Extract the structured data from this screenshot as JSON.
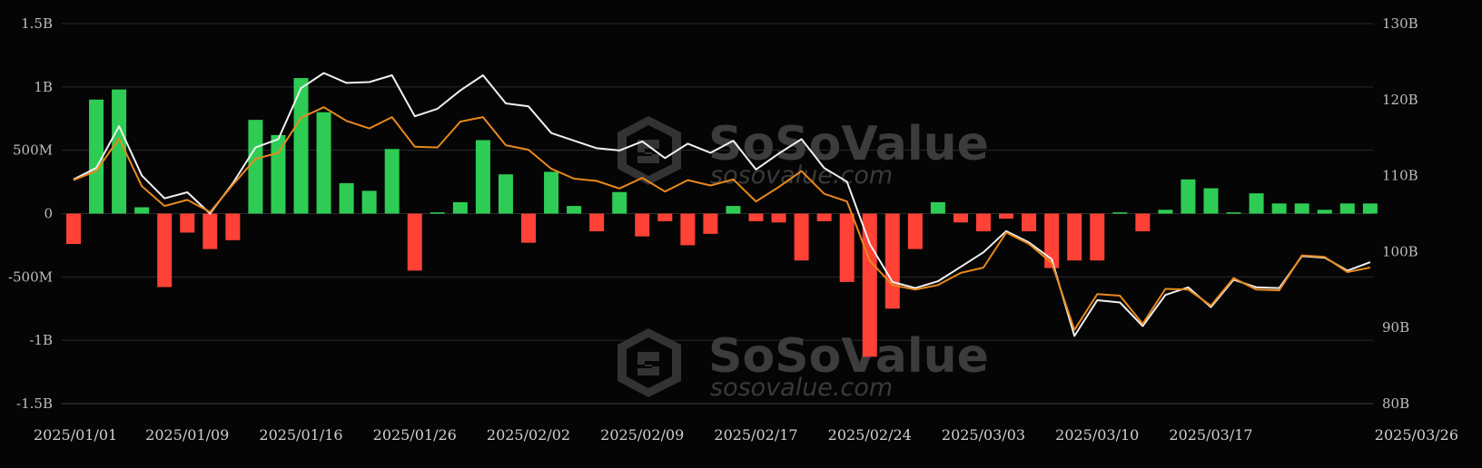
{
  "watermark": {
    "brand": "SoSoValue",
    "site": "sosovalue.com"
  },
  "colors": {
    "inflow": "#2ecc55",
    "outflow": "#ff4136",
    "line_primary": "#f0f0f0",
    "line_secondary": "#e8891c",
    "grid": "#2a2a2a",
    "background": "#050505"
  },
  "chart_data": {
    "type": "bar",
    "y_left": {
      "range": [
        -1500000000,
        1500000000
      ],
      "ticks": [
        {
          "value": 1500000000,
          "label": "1.5B"
        },
        {
          "value": 1000000000,
          "label": "1B"
        },
        {
          "value": 500000000,
          "label": "500M"
        },
        {
          "value": 0,
          "label": "0"
        },
        {
          "value": -500000000,
          "label": "-500M"
        },
        {
          "value": -1000000000,
          "label": "-1B"
        },
        {
          "value": -1500000000,
          "label": "-1.5B"
        }
      ]
    },
    "y_right": {
      "range": [
        80000000000,
        130000000000
      ],
      "ticks": [
        {
          "value": 130000000000,
          "label": "130B"
        },
        {
          "value": 120000000000,
          "label": "120B"
        },
        {
          "value": 110000000000,
          "label": "110B"
        },
        {
          "value": 100000000000,
          "label": "100B"
        },
        {
          "value": 90000000000,
          "label": "90B"
        },
        {
          "value": 80000000000,
          "label": "80B"
        }
      ]
    },
    "x_tick_labels": [
      {
        "index": 0,
        "label": "2025/01/01"
      },
      {
        "index": 5,
        "label": "2025/01/09"
      },
      {
        "index": 10,
        "label": "2025/01/16"
      },
      {
        "index": 15,
        "label": "2025/01/26"
      },
      {
        "index": 20,
        "label": "2025/02/02"
      },
      {
        "index": 25,
        "label": "2025/02/09"
      },
      {
        "index": 30,
        "label": "2025/02/17"
      },
      {
        "index": 35,
        "label": "2025/02/24"
      },
      {
        "index": 40,
        "label": "2025/03/03"
      },
      {
        "index": 45,
        "label": "2025/03/10"
      },
      {
        "index": 50,
        "label": "2025/03/17"
      },
      {
        "index": 57,
        "label": "2025/03/26"
      }
    ],
    "bars": {
      "axis": "left",
      "values": [
        -240000000,
        900000000,
        980000000,
        50000000,
        -580000000,
        -150000000,
        -280000000,
        -210000000,
        740000000,
        620000000,
        1070000000,
        800000000,
        240000000,
        180000000,
        510000000,
        -450000000,
        10000000,
        90000000,
        580000000,
        310000000,
        -230000000,
        330000000,
        60000000,
        -140000000,
        170000000,
        -180000000,
        -60000000,
        -250000000,
        -160000000,
        60000000,
        -60000000,
        -70000000,
        -370000000,
        -60000000,
        -540000000,
        -1130000000,
        -750000000,
        -280000000,
        90000000,
        -70000000,
        -140000000,
        -40000000,
        -140000000,
        -430000000,
        -370000000,
        -370000000,
        10000000,
        -140000000,
        30000000,
        270000000,
        200000000,
        10000000,
        160000000,
        80000000,
        80000000,
        30000000,
        80000000,
        80000000
      ]
    },
    "series": [
      {
        "axis": "right",
        "values": [
          109.5,
          111.0,
          116.5,
          110.0,
          107.0,
          107.8,
          105.0,
          109.0,
          113.7,
          114.8,
          121.5,
          123.5,
          122.2,
          122.3,
          123.2,
          117.8,
          118.8,
          121.2,
          123.2,
          119.5,
          119.1,
          115.6,
          114.6,
          113.6,
          113.3,
          114.5,
          112.3,
          114.2,
          113.0,
          114.6,
          110.8,
          112.9,
          114.8,
          111.0,
          109.2,
          101.0,
          96.0,
          95.2,
          96.1,
          98.0,
          99.9,
          102.7,
          101.2,
          99.0,
          88.9,
          93.6,
          93.3,
          90.2,
          94.3,
          95.3,
          92.7,
          96.3,
          95.3,
          95.2,
          99.4,
          99.2,
          97.5,
          98.6
        ]
      },
      {
        "axis": "right",
        "values": [
          109.4,
          110.6,
          114.9,
          108.6,
          106.0,
          106.8,
          105.2,
          108.8,
          112.2,
          113.0,
          117.6,
          119.0,
          117.2,
          116.2,
          117.7,
          113.8,
          113.7,
          117.1,
          117.7,
          114.0,
          113.4,
          110.9,
          109.6,
          109.3,
          108.3,
          109.7,
          107.9,
          109.4,
          108.7,
          109.5,
          106.6,
          108.5,
          110.6,
          107.6,
          106.6,
          98.8,
          95.6,
          95.0,
          95.6,
          97.2,
          97.9,
          102.5,
          101.0,
          98.5,
          89.7,
          94.4,
          94.2,
          90.5,
          95.1,
          95.0,
          92.9,
          96.5,
          95.0,
          94.9,
          99.5,
          99.3,
          97.3,
          97.9
        ]
      }
    ]
  }
}
